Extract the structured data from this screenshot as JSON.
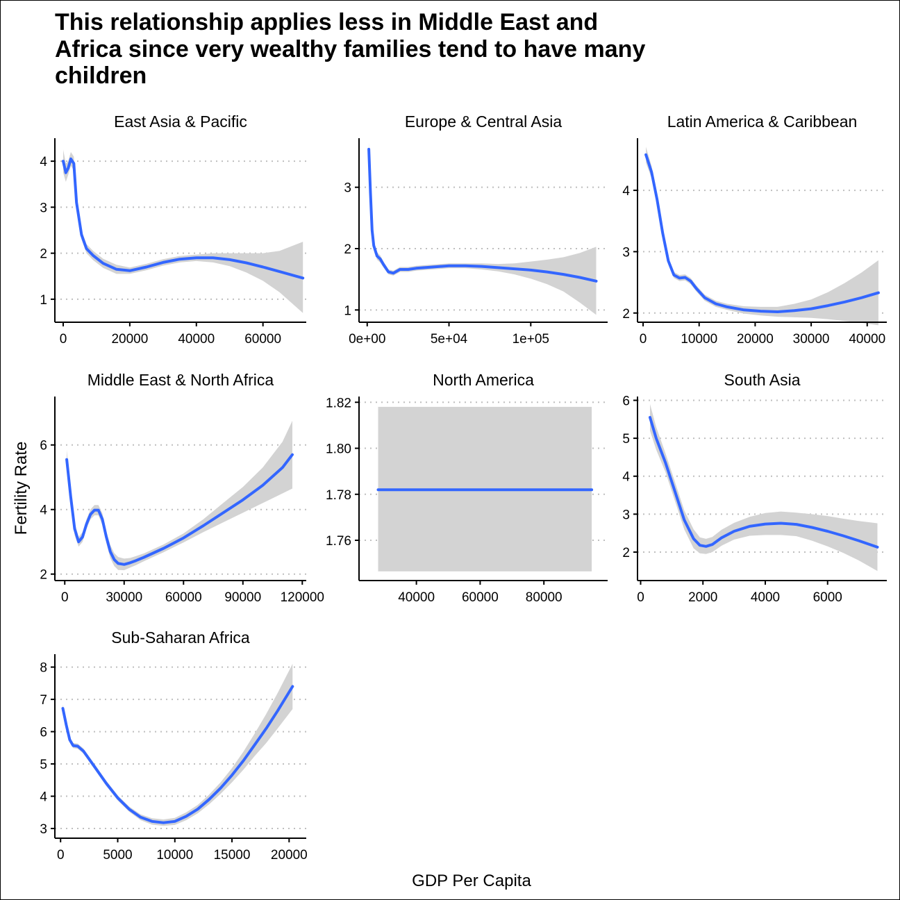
{
  "title": "This relationship applies less in Middle East and Africa since very wealthy families tend to have many children",
  "xlabel": "GDP Per Capita",
  "ylabel": "Fertility Rate",
  "colors": {
    "line": "#3366FF",
    "ribbon": "#D3D3D3",
    "grid": "#BEBEBE",
    "axis": "#000000"
  },
  "chart_data": [
    {
      "type": "line",
      "panel": "East Asia & Pacific",
      "xlim": [
        -2500,
        73000
      ],
      "ylim": [
        0.5,
        4.5
      ],
      "xticks": [
        0,
        20000,
        40000,
        60000
      ],
      "xtick_labels": [
        "0",
        "20000",
        "40000",
        "60000"
      ],
      "yticks": [
        1,
        2,
        3,
        4
      ],
      "ytick_labels": [
        "1",
        "2",
        "3",
        "4"
      ],
      "x": [
        0,
        800,
        1500,
        2300,
        3200,
        4000,
        5500,
        7000,
        9000,
        12000,
        16000,
        20000,
        25000,
        30000,
        35000,
        40000,
        45000,
        50000,
        55000,
        60000,
        65000,
        72000
      ],
      "y": [
        4.0,
        3.75,
        3.85,
        4.05,
        3.95,
        3.1,
        2.4,
        2.1,
        1.95,
        1.78,
        1.65,
        1.62,
        1.7,
        1.8,
        1.87,
        1.9,
        1.9,
        1.86,
        1.79,
        1.7,
        1.6,
        1.46
      ],
      "lower": [
        3.75,
        3.55,
        3.7,
        3.9,
        3.8,
        2.95,
        2.3,
        2.0,
        1.85,
        1.68,
        1.55,
        1.55,
        1.63,
        1.73,
        1.8,
        1.83,
        1.8,
        1.72,
        1.58,
        1.4,
        1.15,
        0.7
      ],
      "upper": [
        4.25,
        3.95,
        4.0,
        4.2,
        4.1,
        3.25,
        2.5,
        2.2,
        2.05,
        1.88,
        1.75,
        1.69,
        1.77,
        1.87,
        1.94,
        1.97,
        2.0,
        2.0,
        2.0,
        2.0,
        2.05,
        2.25
      ]
    },
    {
      "type": "line",
      "panel": "Europe & Central Asia",
      "xlim": [
        -5000,
        147000
      ],
      "ylim": [
        0.8,
        3.8
      ],
      "xticks": [
        0,
        50000,
        100000
      ],
      "xtick_labels": [
        "0e+00",
        "5e+04",
        "1e+05"
      ],
      "yticks": [
        1,
        2,
        3
      ],
      "ytick_labels": [
        "1",
        "2",
        "3"
      ],
      "x": [
        1000,
        2000,
        3000,
        4000,
        6000,
        8000,
        10000,
        13000,
        16000,
        20000,
        25000,
        30000,
        40000,
        50000,
        60000,
        70000,
        80000,
        90000,
        100000,
        110000,
        120000,
        130000,
        140000
      ],
      "y": [
        3.62,
        2.9,
        2.3,
        2.05,
        1.88,
        1.83,
        1.74,
        1.62,
        1.6,
        1.66,
        1.66,
        1.68,
        1.7,
        1.72,
        1.72,
        1.71,
        1.69,
        1.67,
        1.65,
        1.62,
        1.58,
        1.53,
        1.47
      ],
      "lower": [
        3.5,
        2.8,
        2.22,
        1.98,
        1.82,
        1.77,
        1.69,
        1.58,
        1.56,
        1.62,
        1.62,
        1.64,
        1.66,
        1.68,
        1.68,
        1.66,
        1.63,
        1.58,
        1.51,
        1.42,
        1.3,
        1.12,
        0.92
      ],
      "upper": [
        3.74,
        3.0,
        2.38,
        2.12,
        1.94,
        1.89,
        1.79,
        1.66,
        1.64,
        1.7,
        1.7,
        1.72,
        1.74,
        1.76,
        1.76,
        1.76,
        1.75,
        1.76,
        1.79,
        1.82,
        1.86,
        1.93,
        2.03
      ]
    },
    {
      "type": "line",
      "panel": "Latin America & Caribbean",
      "xlim": [
        -1000,
        43500
      ],
      "ylim": [
        1.85,
        4.85
      ],
      "xticks": [
        0,
        10000,
        20000,
        30000,
        40000
      ],
      "xtick_labels": [
        "0",
        "10000",
        "20000",
        "30000",
        "40000"
      ],
      "yticks": [
        2,
        3,
        4
      ],
      "ytick_labels": [
        "2",
        "3",
        "4"
      ],
      "x": [
        500,
        1500,
        2500,
        3500,
        4500,
        5500,
        6500,
        7500,
        8500,
        9500,
        11000,
        13000,
        15000,
        18000,
        21000,
        24000,
        27000,
        30000,
        33000,
        36000,
        39000,
        42000
      ],
      "y": [
        4.58,
        4.3,
        3.85,
        3.3,
        2.85,
        2.62,
        2.57,
        2.58,
        2.52,
        2.4,
        2.25,
        2.15,
        2.1,
        2.05,
        2.03,
        2.02,
        2.04,
        2.07,
        2.12,
        2.18,
        2.25,
        2.33
      ],
      "lower": [
        4.45,
        4.2,
        3.77,
        3.23,
        2.79,
        2.57,
        2.52,
        2.53,
        2.47,
        2.35,
        2.2,
        2.1,
        2.05,
        1.99,
        1.96,
        1.94,
        1.93,
        1.92,
        1.9,
        1.87,
        1.84,
        1.8
      ],
      "upper": [
        4.71,
        4.4,
        3.93,
        3.37,
        2.91,
        2.67,
        2.62,
        2.63,
        2.57,
        2.45,
        2.3,
        2.2,
        2.15,
        2.11,
        2.1,
        2.1,
        2.15,
        2.22,
        2.34,
        2.49,
        2.66,
        2.86
      ]
    },
    {
      "type": "line",
      "panel": "Middle East & North Africa",
      "xlim": [
        -5000,
        122000
      ],
      "ylim": [
        1.8,
        7.5
      ],
      "xticks": [
        0,
        30000,
        60000,
        90000,
        120000
      ],
      "xtick_labels": [
        "0",
        "30000",
        "60000",
        "90000",
        "120000"
      ],
      "yticks": [
        2,
        4,
        6
      ],
      "ytick_labels": [
        "2",
        "4",
        "6"
      ],
      "x": [
        1000,
        3000,
        5000,
        7000,
        9000,
        11000,
        13000,
        15000,
        17000,
        19000,
        21000,
        23000,
        25000,
        27000,
        30000,
        33000,
        36000,
        40000,
        50000,
        60000,
        70000,
        80000,
        90000,
        100000,
        110000,
        115000
      ],
      "y": [
        5.55,
        4.4,
        3.4,
        3.0,
        3.15,
        3.55,
        3.85,
        3.98,
        3.98,
        3.7,
        3.15,
        2.7,
        2.45,
        2.33,
        2.3,
        2.35,
        2.42,
        2.52,
        2.8,
        3.12,
        3.5,
        3.9,
        4.3,
        4.75,
        5.3,
        5.7
      ],
      "lower": [
        5.25,
        4.15,
        3.2,
        2.85,
        3.0,
        3.4,
        3.7,
        3.82,
        3.82,
        3.52,
        2.97,
        2.5,
        2.25,
        2.13,
        2.12,
        2.2,
        2.28,
        2.4,
        2.68,
        2.98,
        3.3,
        3.6,
        3.9,
        4.2,
        4.5,
        4.65
      ],
      "upper": [
        5.85,
        4.65,
        3.6,
        3.15,
        3.3,
        3.7,
        4.0,
        4.14,
        4.14,
        3.88,
        3.33,
        2.9,
        2.65,
        2.53,
        2.48,
        2.5,
        2.56,
        2.64,
        2.92,
        3.26,
        3.7,
        4.2,
        4.7,
        5.3,
        6.1,
        6.75
      ]
    },
    {
      "type": "line",
      "panel": "North America",
      "xlim": [
        22000,
        100000
      ],
      "ylim": [
        1.7425,
        1.8225
      ],
      "xticks": [
        40000,
        60000,
        80000
      ],
      "xtick_labels": [
        "40000",
        "60000",
        "80000"
      ],
      "yticks": [
        1.76,
        1.78,
        1.8,
        1.82
      ],
      "ytick_labels": [
        "1.76",
        "1.78",
        "1.80",
        "1.82"
      ],
      "x": [
        28000,
        95000
      ],
      "y": [
        1.782,
        1.782
      ],
      "lower": [
        1.7465,
        1.7465
      ],
      "upper": [
        1.818,
        1.818
      ]
    },
    {
      "type": "line",
      "panel": "South Asia",
      "xlim": [
        -100,
        7900
      ],
      "ylim": [
        1.25,
        6.1
      ],
      "xticks": [
        0,
        2000,
        4000,
        6000
      ],
      "xtick_labels": [
        "0",
        "2000",
        "4000",
        "6000"
      ],
      "yticks": [
        2,
        3,
        4,
        5,
        6
      ],
      "ytick_labels": [
        "2",
        "3",
        "4",
        "5",
        "6"
      ],
      "x": [
        300,
        500,
        800,
        1100,
        1400,
        1700,
        1900,
        2100,
        2300,
        2600,
        3000,
        3500,
        4000,
        4500,
        5000,
        5500,
        6000,
        6500,
        7000,
        7600
      ],
      "y": [
        5.55,
        5.0,
        4.35,
        3.6,
        2.85,
        2.35,
        2.18,
        2.15,
        2.2,
        2.38,
        2.55,
        2.68,
        2.74,
        2.76,
        2.73,
        2.65,
        2.55,
        2.43,
        2.3,
        2.13
      ],
      "lower": [
        5.2,
        4.7,
        4.1,
        3.35,
        2.6,
        2.1,
        1.97,
        1.95,
        2.0,
        2.17,
        2.33,
        2.43,
        2.45,
        2.45,
        2.42,
        2.3,
        2.15,
        1.98,
        1.78,
        1.5
      ],
      "upper": [
        5.9,
        5.3,
        4.6,
        3.85,
        3.1,
        2.6,
        2.39,
        2.35,
        2.4,
        2.59,
        2.77,
        2.93,
        3.03,
        3.07,
        3.04,
        3.0,
        2.95,
        2.88,
        2.82,
        2.76
      ]
    },
    {
      "type": "line",
      "panel": "Sub-Saharan Africa",
      "xlim": [
        -500,
        21500
      ],
      "ylim": [
        2.7,
        8.4
      ],
      "xticks": [
        0,
        5000,
        10000,
        15000,
        20000
      ],
      "xtick_labels": [
        "0",
        "5000",
        "10000",
        "15000",
        "20000"
      ],
      "yticks": [
        3,
        4,
        5,
        6,
        7,
        8
      ],
      "ytick_labels": [
        "3",
        "4",
        "5",
        "6",
        "7",
        "8"
      ],
      "x": [
        200,
        500,
        800,
        1100,
        1500,
        2000,
        3000,
        4000,
        5000,
        6000,
        7000,
        8000,
        9000,
        10000,
        11000,
        12000,
        13000,
        14000,
        15000,
        16000,
        17000,
        18000,
        19000,
        20300
      ],
      "y": [
        6.72,
        6.2,
        5.75,
        5.57,
        5.55,
        5.4,
        4.9,
        4.4,
        3.95,
        3.6,
        3.35,
        3.22,
        3.18,
        3.22,
        3.38,
        3.6,
        3.9,
        4.25,
        4.65,
        5.1,
        5.6,
        6.1,
        6.65,
        7.4
      ],
      "lower": [
        6.6,
        6.1,
        5.67,
        5.49,
        5.47,
        5.32,
        4.82,
        4.32,
        3.87,
        3.52,
        3.26,
        3.12,
        3.08,
        3.11,
        3.26,
        3.47,
        3.75,
        4.07,
        4.43,
        4.82,
        5.25,
        5.65,
        6.1,
        6.7
      ],
      "upper": [
        6.84,
        6.3,
        5.83,
        5.65,
        5.63,
        5.48,
        4.98,
        4.48,
        4.03,
        3.68,
        3.44,
        3.32,
        3.28,
        3.33,
        3.5,
        3.73,
        4.05,
        4.43,
        4.87,
        5.38,
        5.95,
        6.55,
        7.2,
        8.1
      ]
    }
  ]
}
